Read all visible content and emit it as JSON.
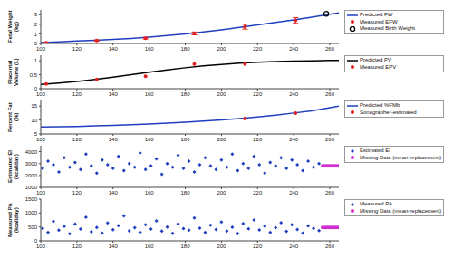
{
  "chart_data": [
    {
      "type": "line",
      "ylabel": "Fetal Weight (kg)",
      "xlim": [
        100,
        265
      ],
      "xticks": [
        100,
        120,
        140,
        160,
        180,
        200,
        220,
        240,
        260
      ],
      "ylim": [
        0,
        3.5
      ],
      "yticks": [
        0,
        1,
        2,
        3
      ],
      "grid": false,
      "legend": "right",
      "series": [
        {
          "name": "Predicted FW",
          "type": "line",
          "color": "#1f3fbf",
          "line_style": "solid",
          "x": [
            100,
            110,
            120,
            130,
            140,
            150,
            160,
            170,
            180,
            190,
            200,
            210,
            220,
            230,
            240,
            250,
            260,
            265
          ],
          "values": [
            0.1,
            0.17,
            0.25,
            0.33,
            0.42,
            0.53,
            0.66,
            0.82,
            1.0,
            1.2,
            1.43,
            1.67,
            1.93,
            2.2,
            2.47,
            2.75,
            3.05,
            3.2
          ]
        },
        {
          "name": "Measured EFW",
          "type": "scatter",
          "color": "#e02020",
          "marker": "circle",
          "x": [
            103,
            131,
            158,
            185,
            213,
            241
          ],
          "values": [
            0.08,
            0.3,
            0.55,
            1.05,
            1.75,
            2.4
          ],
          "error": [
            0.03,
            0.05,
            0.08,
            0.15,
            0.25,
            0.3
          ]
        },
        {
          "name": "Measured Birth Weight",
          "type": "scatter",
          "color": "#000000",
          "marker": "open_circle",
          "x": [
            258
          ],
          "values": [
            3.1
          ]
        }
      ]
    },
    {
      "type": "line",
      "ylabel": "Placental Volume (L)",
      "xlim": [
        100,
        265
      ],
      "xticks": [
        100,
        120,
        140,
        160,
        180,
        200,
        220,
        240,
        260
      ],
      "ylim": [
        0,
        1.2
      ],
      "yticks": [
        0,
        0.5,
        1
      ],
      "grid": false,
      "legend": "right",
      "series": [
        {
          "name": "Predicted PV",
          "type": "line",
          "color": "#000000",
          "line_style": "solid",
          "x": [
            100,
            110,
            120,
            130,
            140,
            150,
            160,
            170,
            180,
            190,
            200,
            210,
            220,
            230,
            240,
            250,
            260,
            265
          ],
          "values": [
            0.15,
            0.2,
            0.26,
            0.33,
            0.41,
            0.5,
            0.59,
            0.67,
            0.75,
            0.82,
            0.87,
            0.92,
            0.95,
            0.97,
            0.99,
            1.0,
            1.01,
            1.01
          ]
        },
        {
          "name": "Measured EPV",
          "type": "scatter",
          "color": "#e02020",
          "marker": "circle",
          "x": [
            103,
            131,
            158,
            185,
            213
          ],
          "values": [
            0.17,
            0.33,
            0.45,
            0.88,
            0.88
          ]
        }
      ]
    },
    {
      "type": "line",
      "ylabel": "Percent Fat (%)",
      "xlim": [
        100,
        265
      ],
      "xticks": [
        100,
        120,
        140,
        160,
        180,
        200,
        220,
        240,
        260
      ],
      "ylim": [
        5,
        17
      ],
      "yticks": [
        5,
        10,
        15
      ],
      "grid": false,
      "legend": "right",
      "series": [
        {
          "name": "Predicted %FMb",
          "type": "line",
          "color": "#1f3fbf",
          "line_style": "solid",
          "x": [
            100,
            110,
            120,
            130,
            140,
            150,
            160,
            170,
            180,
            190,
            200,
            210,
            220,
            230,
            240,
            250,
            260,
            265
          ],
          "values": [
            7.5,
            7.6,
            7.7,
            7.9,
            8.1,
            8.3,
            8.6,
            8.9,
            9.2,
            9.6,
            10.0,
            10.5,
            11.1,
            11.7,
            12.5,
            13.3,
            14.4,
            15.0
          ]
        },
        {
          "name": "Sonographer-estimated",
          "type": "scatter",
          "color": "#e02020",
          "marker": "circle",
          "x": [
            213,
            241
          ],
          "values": [
            10.5,
            12.5
          ]
        }
      ]
    },
    {
      "type": "scatter",
      "ylabel": "Estimated EI (kcal/day)",
      "xlim": [
        100,
        265
      ],
      "xticks": [
        100,
        120,
        140,
        160,
        180,
        200,
        220,
        240,
        260
      ],
      "ylim": [
        1000,
        4500
      ],
      "yticks": [
        1000,
        2000,
        3000,
        4000
      ],
      "grid": false,
      "legend": "right",
      "series": [
        {
          "name": "Estimated EI",
          "type": "scatter",
          "color": "#1f3fbf",
          "marker": "diamond",
          "x": [
            101,
            104,
            107,
            110,
            113,
            116,
            119,
            122,
            125,
            128,
            131,
            134,
            137,
            140,
            143,
            146,
            149,
            152,
            155,
            158,
            161,
            164,
            167,
            170,
            173,
            176,
            179,
            182,
            185,
            188,
            191,
            194,
            197,
            200,
            203,
            206,
            209,
            212,
            215,
            218,
            221,
            224,
            227,
            230,
            233,
            236,
            239,
            242,
            245,
            248,
            251,
            254
          ],
          "values": [
            2600,
            3200,
            2900,
            2300,
            3500,
            2700,
            3100,
            2500,
            3800,
            2800,
            2200,
            3300,
            2900,
            2600,
            3600,
            2400,
            3000,
            2700,
            3900,
            2500,
            2800,
            3400,
            2100,
            3000,
            2700,
            3700,
            2600,
            3200,
            2300,
            2900,
            3500,
            2800,
            2500,
            3300,
            2700,
            3800,
            2400,
            3000,
            2600,
            3600,
            2900,
            2200,
            3100,
            2800,
            3500,
            2600,
            3300,
            2900,
            2400,
            3200,
            2700,
            3000
          ]
        },
        {
          "name": "Missing Data (mean-replacement)",
          "type": "scatter",
          "color": "#d030d0",
          "marker": "circle",
          "x": [
            256,
            257,
            258,
            259,
            260,
            261,
            262,
            263,
            264,
            265
          ],
          "values": [
            2800,
            2800,
            2800,
            2800,
            2800,
            2800,
            2800,
            2800,
            2800,
            2800
          ]
        }
      ]
    },
    {
      "type": "scatter",
      "ylabel": "Measured PA (kcal/day)",
      "xlim": [
        100,
        265
      ],
      "xticks": [
        100,
        120,
        140,
        160,
        180,
        200,
        220,
        240,
        260
      ],
      "ylim": [
        0,
        1500
      ],
      "yticks": [
        0,
        500,
        1000,
        1500
      ],
      "grid": false,
      "legend": "right",
      "series": [
        {
          "name": "Measured PA",
          "type": "scatter",
          "color": "#1f3fbf",
          "marker": "diamond",
          "x": [
            101,
            104,
            107,
            110,
            113,
            116,
            119,
            122,
            125,
            128,
            131,
            134,
            137,
            140,
            143,
            146,
            149,
            152,
            155,
            158,
            161,
            164,
            167,
            170,
            173,
            176,
            179,
            182,
            185,
            188,
            191,
            194,
            197,
            200,
            203,
            206,
            209,
            212,
            215,
            218,
            221,
            224,
            227,
            230,
            233,
            236,
            239,
            242,
            245,
            248,
            251,
            254
          ],
          "values": [
            450,
            300,
            700,
            380,
            520,
            250,
            600,
            420,
            850,
            330,
            480,
            280,
            640,
            400,
            550,
            900,
            360,
            470,
            310,
            580,
            420,
            720,
            350,
            500,
            270,
            610,
            440,
            380,
            820,
            460,
            300,
            560,
            410,
            680,
            350,
            490,
            260,
            620,
            430,
            750,
            390,
            520,
            300,
            470,
            650,
            340,
            580,
            410,
            280,
            540,
            450,
            370
          ]
        },
        {
          "name": "Missing Data (mean-replacement)",
          "type": "scatter",
          "color": "#d030d0",
          "marker": "circle",
          "x": [
            256,
            257,
            258,
            259,
            260,
            261,
            262,
            263,
            264,
            265
          ],
          "values": [
            480,
            480,
            480,
            480,
            480,
            480,
            480,
            480,
            480,
            480
          ]
        }
      ]
    }
  ]
}
